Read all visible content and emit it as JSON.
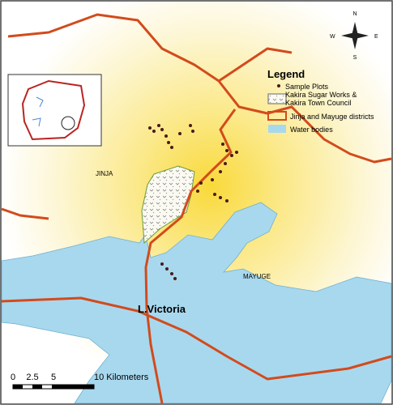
{
  "legend": {
    "title": "Legend",
    "items": [
      "Sample Plots",
      [
        "Kakira Sugar Works &",
        "Kakira Town Council"
      ],
      "Jinja and Mayuge districts",
      "Water bodies"
    ]
  },
  "labels": {
    "jinja": "JINJA",
    "mayuge": "MAYUGE",
    "lake": "L.Victoria"
  },
  "compass": {
    "north": "N",
    "south": "S",
    "east": "E",
    "west": "W"
  },
  "scale": {
    "ticks": [
      "0",
      "2.5",
      "5"
    ],
    "end": "10 Kilometers"
  }
}
